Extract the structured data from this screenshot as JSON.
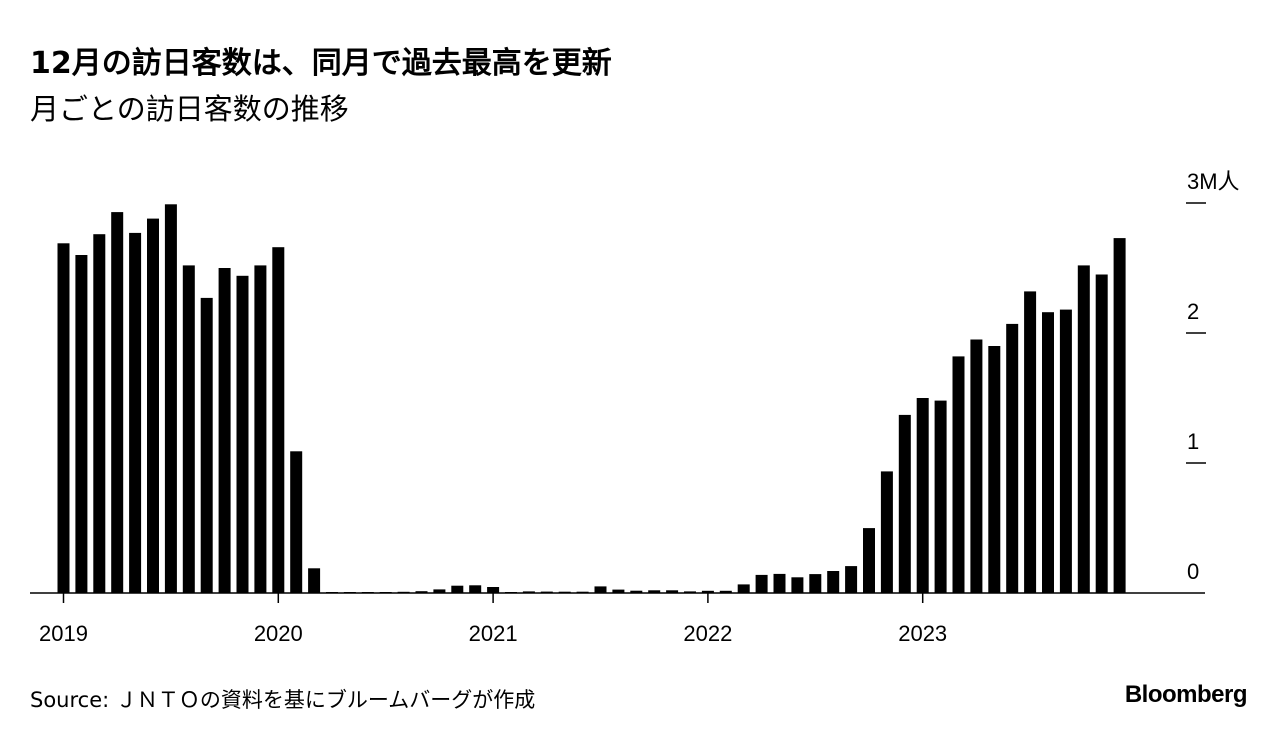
{
  "title": "12月の訪日客数は、同月で過去最高を更新",
  "subtitle": "月ごとの訪日客数の推移",
  "source": "Source: ＪＮＴＯの資料を基にブルームバーグが作成",
  "brand": "Bloomberg",
  "chart_data": {
    "type": "bar",
    "x_labels": [
      "2019",
      "2020",
      "2021",
      "2022",
      "2023"
    ],
    "y_ticks": [
      {
        "value": 0,
        "label": "0"
      },
      {
        "value": 1,
        "label": "1"
      },
      {
        "value": 2,
        "label": "2"
      },
      {
        "value": 3,
        "label": "3M人"
      }
    ],
    "ylim": [
      0,
      3
    ],
    "bar_color": "#000000",
    "values": [
      2.69,
      2.6,
      2.76,
      2.93,
      2.77,
      2.88,
      2.99,
      2.52,
      2.27,
      2.5,
      2.44,
      2.52,
      2.66,
      1.09,
      0.19,
      0.003,
      0.002,
      0.003,
      0.004,
      0.009,
      0.014,
      0.028,
      0.056,
      0.059,
      0.046,
      0.007,
      0.012,
      0.011,
      0.01,
      0.01,
      0.051,
      0.026,
      0.018,
      0.021,
      0.021,
      0.012,
      0.017,
      0.017,
      0.066,
      0.139,
      0.147,
      0.121,
      0.145,
      0.169,
      0.207,
      0.499,
      0.935,
      1.37,
      1.5,
      1.48,
      1.82,
      1.95,
      1.9,
      2.07,
      2.32,
      2.16,
      2.18,
      2.52,
      2.45,
      2.73
    ]
  }
}
